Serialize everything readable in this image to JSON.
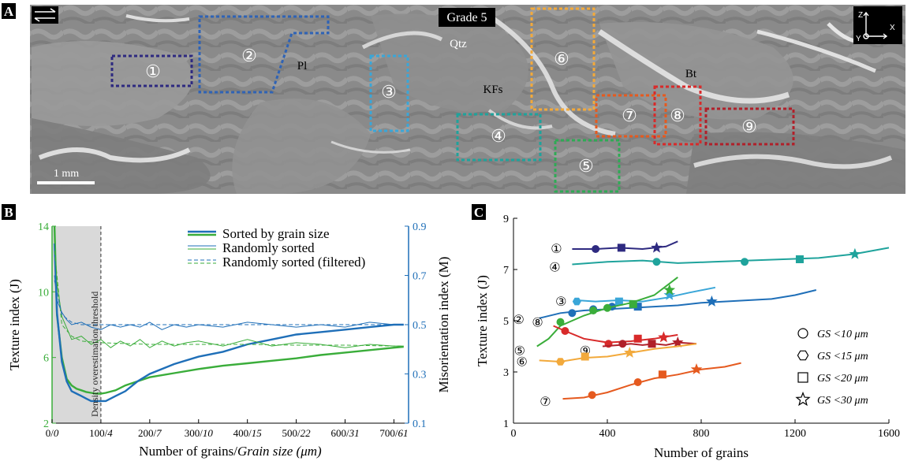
{
  "panel_a": {
    "letter": "A",
    "title": "Grade 5",
    "scale_bar": "1 mm",
    "axes": {
      "z": "Z",
      "x": "X",
      "y": "Y"
    },
    "minerals": [
      "Qtz",
      "Pl",
      "KFs",
      "Bt"
    ],
    "regions": [
      {
        "id": "1",
        "label": "①",
        "color": "#2e2a80"
      },
      {
        "id": "2",
        "label": "②",
        "color": "#2f63b5"
      },
      {
        "id": "3",
        "label": "③",
        "color": "#3aa6d8"
      },
      {
        "id": "4",
        "label": "④",
        "color": "#1fa39c"
      },
      {
        "id": "5",
        "label": "⑤",
        "color": "#2faa55"
      },
      {
        "id": "6",
        "label": "⑥",
        "color": "#f2a93b"
      },
      {
        "id": "7",
        "label": "⑦",
        "color": "#e55a1f"
      },
      {
        "id": "8",
        "label": "⑧",
        "color": "#d82a2a"
      },
      {
        "id": "9",
        "label": "⑨",
        "color": "#b0202a"
      }
    ]
  },
  "chart_data": [
    {
      "panel": "B",
      "type": "line",
      "xlabel": "Number of grains/Grain size (μm)",
      "ylabel_left": "Texture index (J)",
      "ylabel_right": "Misorientation index (M)",
      "x_ticks": [
        "0/0",
        "100/4",
        "200/7",
        "300/10",
        "400/15",
        "500/22",
        "600/31",
        "700/61"
      ],
      "x_tick_values": [
        0,
        100,
        200,
        300,
        400,
        500,
        600,
        700
      ],
      "xlim": [
        0,
        730
      ],
      "y_left_ticks": [
        2,
        6,
        10,
        14
      ],
      "y_left_lim": [
        2,
        14
      ],
      "y_right_ticks": [
        0.1,
        0.3,
        0.5,
        0.7,
        0.9
      ],
      "y_right_lim": [
        0.1,
        0.9
      ],
      "threshold_x": 100,
      "threshold_label": "Density overestimation threshold",
      "legend": [
        "Sorted by grain size",
        "Randomly sorted",
        "Randomly sorted (filtered)"
      ],
      "colors": {
        "texture": "#3aad3a",
        "misorientation": "#1f6fb8"
      },
      "series": [
        {
          "name": "Sorted by grain size",
          "axis": "left",
          "color": "#3aad3a",
          "x": [
            5,
            10,
            20,
            30,
            40,
            50,
            60,
            70,
            80,
            90,
            100,
            110,
            130,
            150,
            175,
            200,
            250,
            300,
            350,
            400,
            450,
            500,
            550,
            600,
            650,
            700,
            720
          ],
          "y": [
            14,
            8.6,
            6.0,
            4.7,
            4.3,
            4.1,
            4.0,
            3.9,
            3.85,
            3.8,
            3.8,
            3.85,
            4.0,
            4.3,
            4.55,
            4.8,
            5.05,
            5.3,
            5.5,
            5.65,
            5.8,
            5.95,
            6.15,
            6.3,
            6.45,
            6.6,
            6.65
          ]
        },
        {
          "name": "Sorted by grain size",
          "axis": "right",
          "color": "#1f6fb8",
          "x": [
            5,
            10,
            20,
            30,
            40,
            50,
            60,
            70,
            80,
            90,
            100,
            110,
            130,
            150,
            175,
            200,
            250,
            300,
            350,
            400,
            450,
            500,
            550,
            600,
            650,
            700,
            720
          ],
          "y": [
            0.83,
            0.55,
            0.35,
            0.27,
            0.23,
            0.22,
            0.21,
            0.2,
            0.19,
            0.19,
            0.19,
            0.19,
            0.21,
            0.23,
            0.27,
            0.3,
            0.34,
            0.37,
            0.39,
            0.42,
            0.44,
            0.46,
            0.47,
            0.48,
            0.49,
            0.5,
            0.5
          ]
        },
        {
          "name": "Randomly sorted",
          "axis": "left",
          "color": "#3aad3a",
          "x": [
            5,
            10,
            20,
            30,
            40,
            60,
            80,
            100,
            120,
            140,
            160,
            180,
            200,
            225,
            250,
            275,
            300,
            350,
            400,
            450,
            500,
            550,
            600,
            650,
            700,
            720
          ],
          "y": [
            13.5,
            10.5,
            8.5,
            7.8,
            7.1,
            7.3,
            6.8,
            7.1,
            6.6,
            7.0,
            6.7,
            7.1,
            6.6,
            7.0,
            6.7,
            6.9,
            7.0,
            6.7,
            7.1,
            6.7,
            6.9,
            6.8,
            6.6,
            6.8,
            6.7,
            6.7
          ]
        },
        {
          "name": "Randomly sorted",
          "axis": "right",
          "color": "#1f6fb8",
          "x": [
            5,
            10,
            20,
            30,
            40,
            60,
            80,
            100,
            120,
            140,
            160,
            180,
            200,
            225,
            250,
            275,
            300,
            350,
            400,
            450,
            500,
            550,
            600,
            650,
            700,
            720
          ],
          "y": [
            0.7,
            0.6,
            0.55,
            0.52,
            0.5,
            0.51,
            0.49,
            0.48,
            0.5,
            0.49,
            0.5,
            0.49,
            0.51,
            0.48,
            0.5,
            0.49,
            0.5,
            0.49,
            0.51,
            0.5,
            0.49,
            0.5,
            0.49,
            0.51,
            0.5,
            0.5
          ]
        },
        {
          "name": "Randomly sorted (filtered)",
          "axis": "left",
          "color": "#3aad3a",
          "x": [
            5,
            20,
            40,
            60,
            80,
            100,
            150,
            200,
            300,
            400,
            500,
            600,
            700,
            720
          ],
          "y": [
            12.5,
            8.0,
            7.3,
            7.0,
            6.95,
            6.9,
            6.85,
            6.8,
            6.8,
            6.8,
            6.75,
            6.75,
            6.7,
            6.7
          ]
        },
        {
          "name": "Randomly sorted (filtered)",
          "axis": "right",
          "color": "#1f6fb8",
          "x": [
            5,
            20,
            40,
            60,
            80,
            100,
            150,
            200,
            300,
            400,
            500,
            600,
            700,
            720
          ],
          "y": [
            0.68,
            0.54,
            0.51,
            0.5,
            0.5,
            0.5,
            0.5,
            0.5,
            0.5,
            0.5,
            0.5,
            0.5,
            0.5,
            0.5
          ]
        }
      ]
    },
    {
      "panel": "C",
      "type": "line",
      "xlabel": "Number of grains",
      "ylabel": "Texture index (J)",
      "x_ticks": [
        0,
        400,
        800,
        1200,
        1600
      ],
      "y_ticks": [
        1,
        3,
        5,
        7,
        9
      ],
      "xlim": [
        0,
        1600
      ],
      "ylim": [
        1,
        9
      ],
      "marker_legend": [
        {
          "shape": "circle",
          "label": "GS <10 μm"
        },
        {
          "shape": "hexagon",
          "label": "GS <15 μm"
        },
        {
          "shape": "square",
          "label": "GS <20 μm"
        },
        {
          "shape": "star",
          "label": "GS <30 μm"
        }
      ],
      "series": [
        {
          "region": "①",
          "color": "#2e2a80",
          "x": [
            250,
            350,
            450,
            550,
            650,
            700
          ],
          "y": [
            7.8,
            7.8,
            7.85,
            7.8,
            7.9,
            8.1
          ],
          "markers": [
            [
              350,
              7.8,
              "circle"
            ],
            [
              460,
              7.85,
              "square"
            ],
            [
              610,
              7.85,
              "star"
            ]
          ]
        },
        {
          "region": "④",
          "color": "#1fa39c",
          "x": [
            250,
            400,
            550,
            700,
            850,
            1000,
            1150,
            1300,
            1450,
            1600
          ],
          "y": [
            7.2,
            7.3,
            7.35,
            7.25,
            7.3,
            7.35,
            7.4,
            7.45,
            7.6,
            7.85
          ],
          "markers": [
            [
              610,
              7.3,
              "circle"
            ],
            [
              985,
              7.3,
              "circle"
            ],
            [
              1220,
              7.4,
              "square"
            ],
            [
              1455,
              7.6,
              "star"
            ]
          ]
        },
        {
          "region": "③",
          "color": "#3aa6d8",
          "x": [
            270,
            350,
            450,
            550,
            650,
            750,
            860
          ],
          "y": [
            5.8,
            5.75,
            5.8,
            5.75,
            5.9,
            6.1,
            6.3
          ],
          "markers": [
            [
              270,
              5.75,
              "hexagon"
            ],
            [
              450,
              5.75,
              "square"
            ],
            [
              665,
              6.0,
              "star"
            ]
          ]
        },
        {
          "region": "②",
          "color": "#1f6fb8",
          "x": [
            110,
            200,
            300,
            400,
            500,
            600,
            700,
            800,
            900,
            1000,
            1100,
            1200,
            1290
          ],
          "y": [
            5.1,
            5.3,
            5.4,
            5.45,
            5.5,
            5.55,
            5.6,
            5.7,
            5.75,
            5.8,
            5.85,
            6.0,
            6.2
          ],
          "markers": [
            [
              250,
              5.3,
              "circle"
            ],
            [
              340,
              5.45,
              "circle"
            ],
            [
              420,
              5.55,
              "circle"
            ],
            [
              530,
              5.55,
              "square"
            ],
            [
              845,
              5.75,
              "star"
            ]
          ]
        },
        {
          "region": "⑤",
          "color": "#3aad3a",
          "x": [
            100,
            150,
            200,
            300,
            400,
            500,
            600,
            700
          ],
          "y": [
            4.0,
            4.3,
            4.8,
            5.2,
            5.5,
            5.7,
            6.0,
            6.7
          ],
          "markers": [
            [
              200,
              4.95,
              "circle"
            ],
            [
              340,
              5.4,
              "circle"
            ],
            [
              400,
              5.5,
              "circle"
            ],
            [
              510,
              5.65,
              "square"
            ],
            [
              665,
              6.2,
              "star"
            ]
          ]
        },
        {
          "region": "⑧",
          "color": "#d82a2a",
          "x": [
            170,
            220,
            300,
            400,
            500,
            600,
            700
          ],
          "y": [
            4.8,
            4.6,
            4.3,
            4.15,
            4.2,
            4.3,
            4.45
          ],
          "markers": [
            [
              220,
              4.6,
              "circle"
            ],
            [
              405,
              4.1,
              "circle"
            ],
            [
              530,
              4.3,
              "square"
            ],
            [
              640,
              4.35,
              "star"
            ]
          ]
        },
        {
          "region": "⑨",
          "color": "#b0202a",
          "x": [
            380,
            450,
            500,
            550,
            600,
            650,
            700,
            780
          ],
          "y": [
            4.0,
            4.05,
            4.1,
            4.05,
            4.1,
            4.05,
            4.15,
            4.1
          ],
          "markers": [
            [
              465,
              4.1,
              "circle"
            ],
            [
              590,
              4.1,
              "square"
            ],
            [
              700,
              4.15,
              "star"
            ]
          ]
        },
        {
          "region": "⑥",
          "color": "#f2a93b",
          "x": [
            110,
            200,
            300,
            400,
            500,
            600,
            700,
            780
          ],
          "y": [
            3.45,
            3.4,
            3.55,
            3.6,
            3.75,
            3.9,
            4.0,
            4.1
          ],
          "markers": [
            [
              200,
              3.4,
              "hexagon"
            ],
            [
              305,
              3.6,
              "square"
            ],
            [
              495,
              3.75,
              "star"
            ]
          ]
        },
        {
          "region": "⑦",
          "color": "#e55a1f",
          "x": [
            210,
            300,
            400,
            500,
            600,
            700,
            800,
            900,
            970
          ],
          "y": [
            1.95,
            2.0,
            2.2,
            2.5,
            2.75,
            2.9,
            3.1,
            3.2,
            3.35
          ],
          "markers": [
            [
              335,
              2.1,
              "circle"
            ],
            [
              530,
              2.6,
              "circle"
            ],
            [
              635,
              2.9,
              "square"
            ],
            [
              780,
              3.1,
              "star"
            ]
          ]
        }
      ]
    }
  ]
}
